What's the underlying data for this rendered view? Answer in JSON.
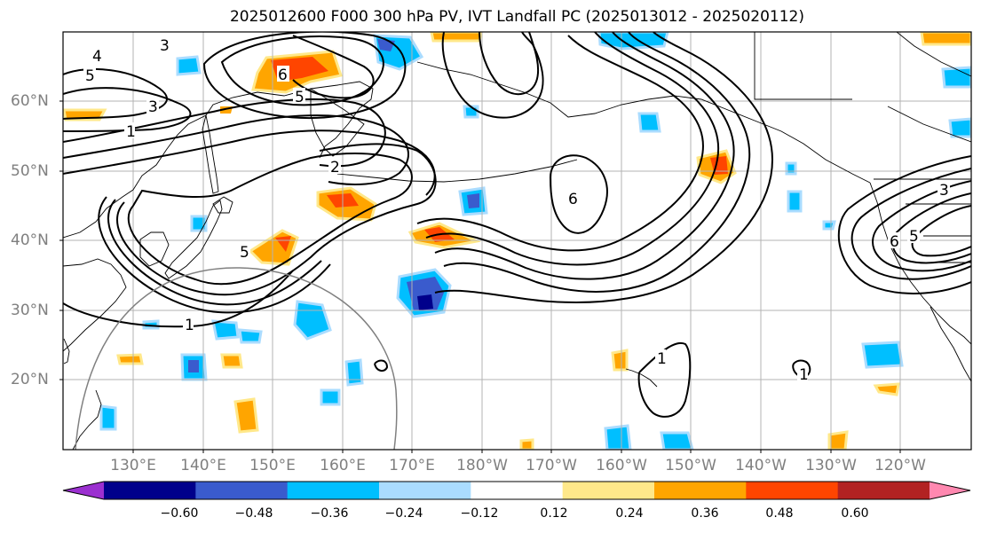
{
  "title": "2025012600 F000 300 hPa PV, IVT Landfall PC (2025013012 - 2025020112)",
  "latitude_labels": [
    "60°N",
    "50°N",
    "40°N",
    "30°N",
    "20°N"
  ],
  "longitude_labels": [
    "130°E",
    "140°E",
    "150°E",
    "160°E",
    "170°E",
    "180°W",
    "170°W",
    "160°W",
    "150°W",
    "140°W",
    "130°W",
    "120°W"
  ],
  "contour_labels": [
    "3",
    "4",
    "5",
    "6",
    "5",
    "3",
    "1",
    "2",
    "6",
    "6",
    "5",
    "1",
    "1",
    "1",
    "5",
    "3"
  ],
  "colorbar": {
    "colors": [
      "#9b30d0",
      "#00008b",
      "#3a5bcd",
      "#00bfff",
      "#aadcff",
      "#ffffff",
      "#ffe88a",
      "#ffa500",
      "#ff4500",
      "#b22222",
      "#ff88b0"
    ],
    "tick_labels": [
      "−0.60",
      "−0.48",
      "−0.36",
      "−0.24",
      "−0.12",
      "0.12",
      "0.24",
      "0.36",
      "0.48",
      "0.60"
    ]
  }
}
